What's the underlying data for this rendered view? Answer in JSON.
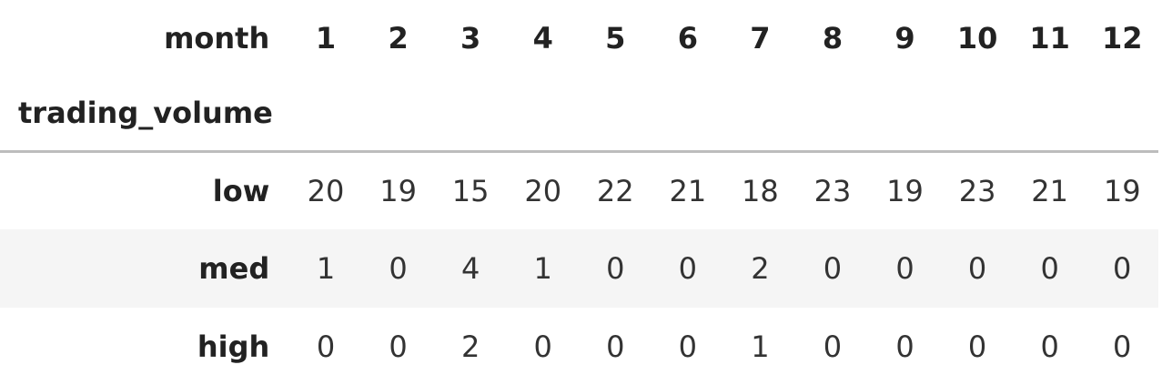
{
  "table": {
    "columns_name": "month",
    "index_name": "trading_volume",
    "columns": [
      "1",
      "2",
      "3",
      "4",
      "5",
      "6",
      "7",
      "8",
      "9",
      "10",
      "11",
      "12"
    ],
    "rows": [
      {
        "label": "low",
        "values": [
          "20",
          "19",
          "15",
          "20",
          "22",
          "21",
          "18",
          "23",
          "19",
          "23",
          "21",
          "19"
        ]
      },
      {
        "label": "med",
        "values": [
          "1",
          "0",
          "4",
          "1",
          "0",
          "0",
          "2",
          "0",
          "0",
          "0",
          "0",
          "0"
        ]
      },
      {
        "label": "high",
        "values": [
          "0",
          "0",
          "2",
          "0",
          "0",
          "0",
          "1",
          "0",
          "0",
          "0",
          "0",
          "0"
        ]
      }
    ]
  },
  "colors": {
    "striped_row": "#f5f5f5",
    "rule": "#bdbdbd"
  }
}
